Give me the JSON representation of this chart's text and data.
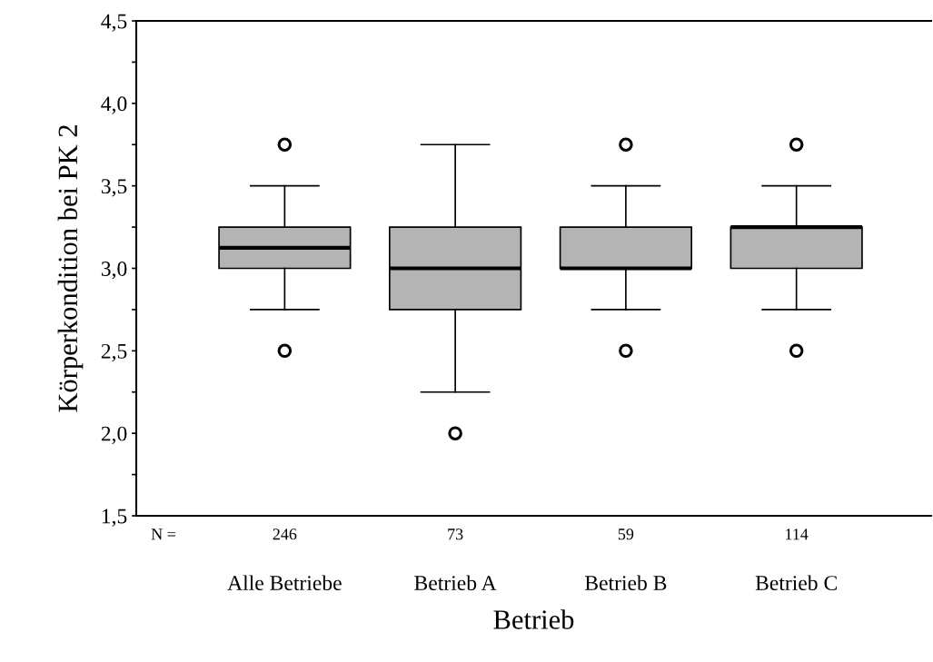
{
  "chart_data": {
    "type": "box",
    "xlabel": "Betrieb",
    "ylabel": "Körperkondition bei PK 2",
    "categories": [
      "Alle Betriebe",
      "Betrieb A",
      "Betrieb B",
      "Betrieb C"
    ],
    "boxes": [
      {
        "low": 2.75,
        "q1": 3.0,
        "median": 3.125,
        "q3": 3.25,
        "high": 3.5,
        "outliers": [
          3.75,
          2.5
        ]
      },
      {
        "low": 2.25,
        "q1": 2.75,
        "median": 3.0,
        "q3": 3.25,
        "high": 3.75,
        "outliers": [
          2.0
        ]
      },
      {
        "low": 2.75,
        "q1": 3.0,
        "median": 3.0,
        "q3": 3.25,
        "high": 3.5,
        "outliers": [
          3.75,
          2.5
        ]
      },
      {
        "low": 2.75,
        "q1": 3.0,
        "median": 3.25,
        "q3": 3.25,
        "high": 3.5,
        "outliers": [
          3.75,
          2.5
        ]
      }
    ],
    "color": "#b4b4b4",
    "ylim": [
      1.5,
      4.5
    ],
    "yticks": [
      {
        "value": 1.5,
        "label": "1,5"
      },
      {
        "value": 1.75,
        "label": null
      },
      {
        "value": 2.0,
        "label": "2,0"
      },
      {
        "value": 2.25,
        "label": null
      },
      {
        "value": 2.5,
        "label": "2,5"
      },
      {
        "value": 2.75,
        "label": null
      },
      {
        "value": 3.0,
        "label": "3,0"
      },
      {
        "value": 3.25,
        "label": null
      },
      {
        "value": 3.5,
        "label": "3,5"
      },
      {
        "value": 3.75,
        "label": null
      },
      {
        "value": 4.0,
        "label": "4,0"
      },
      {
        "value": 4.25,
        "label": null
      },
      {
        "value": 4.5,
        "label": "4,5"
      }
    ],
    "grid": false,
    "annotations": [
      "N =",
      "246",
      "73",
      "59",
      "114"
    ]
  }
}
